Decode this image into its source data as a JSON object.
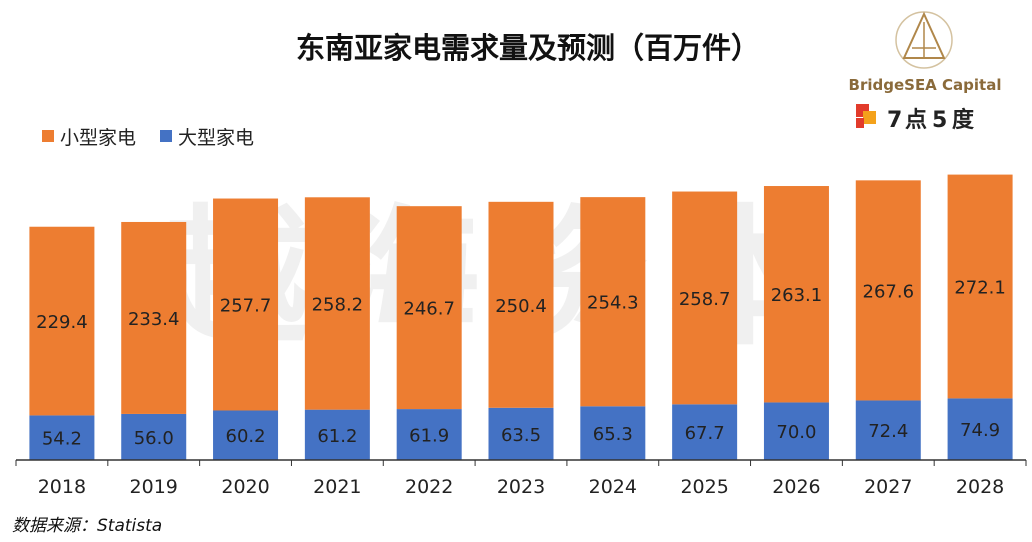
{
  "chart_data": {
    "type": "bar",
    "stacked": true,
    "title": "东南亚家电需求量及预测（百万件）",
    "categories": [
      "2018",
      "2019",
      "2020",
      "2021",
      "2022",
      "2023",
      "2024",
      "2025",
      "2026",
      "2027",
      "2028"
    ],
    "series": [
      {
        "name": "大型家电",
        "color": "#4472C4",
        "values": [
          54.2,
          56.0,
          60.2,
          61.2,
          61.9,
          63.5,
          65.3,
          67.7,
          70.0,
          72.4,
          74.9
        ],
        "labels": [
          "54.2",
          "56.0",
          "60.2",
          "61.2",
          "61.9",
          "63.5",
          "65.3",
          "67.7",
          "70.0",
          "72.4",
          "74.9"
        ]
      },
      {
        "name": "小型家电",
        "color": "#ED7D31",
        "values": [
          229.4,
          233.4,
          257.7,
          258.2,
          246.7,
          250.4,
          254.3,
          258.7,
          263.1,
          267.6,
          272.1
        ],
        "labels": [
          "229.4",
          "233.4",
          "257.7",
          "258.2",
          "246.7",
          "250.4",
          "254.3",
          "258.7",
          "263.1",
          "267.6",
          "272.1"
        ]
      }
    ],
    "legend_order": [
      "小型家电",
      "大型家电"
    ],
    "legend_position": "top-left",
    "ylim": [
      0,
      360
    ],
    "grid": false,
    "xlabel": "",
    "ylabel": ""
  },
  "watermark": "越海资本",
  "brand": {
    "name": "BridgeSEA Capital",
    "partner_digit_1": "7",
    "partner_text": "点",
    "partner_digit_2": "5",
    "partner_text_2": "度"
  },
  "source": "数据来源：Statista"
}
